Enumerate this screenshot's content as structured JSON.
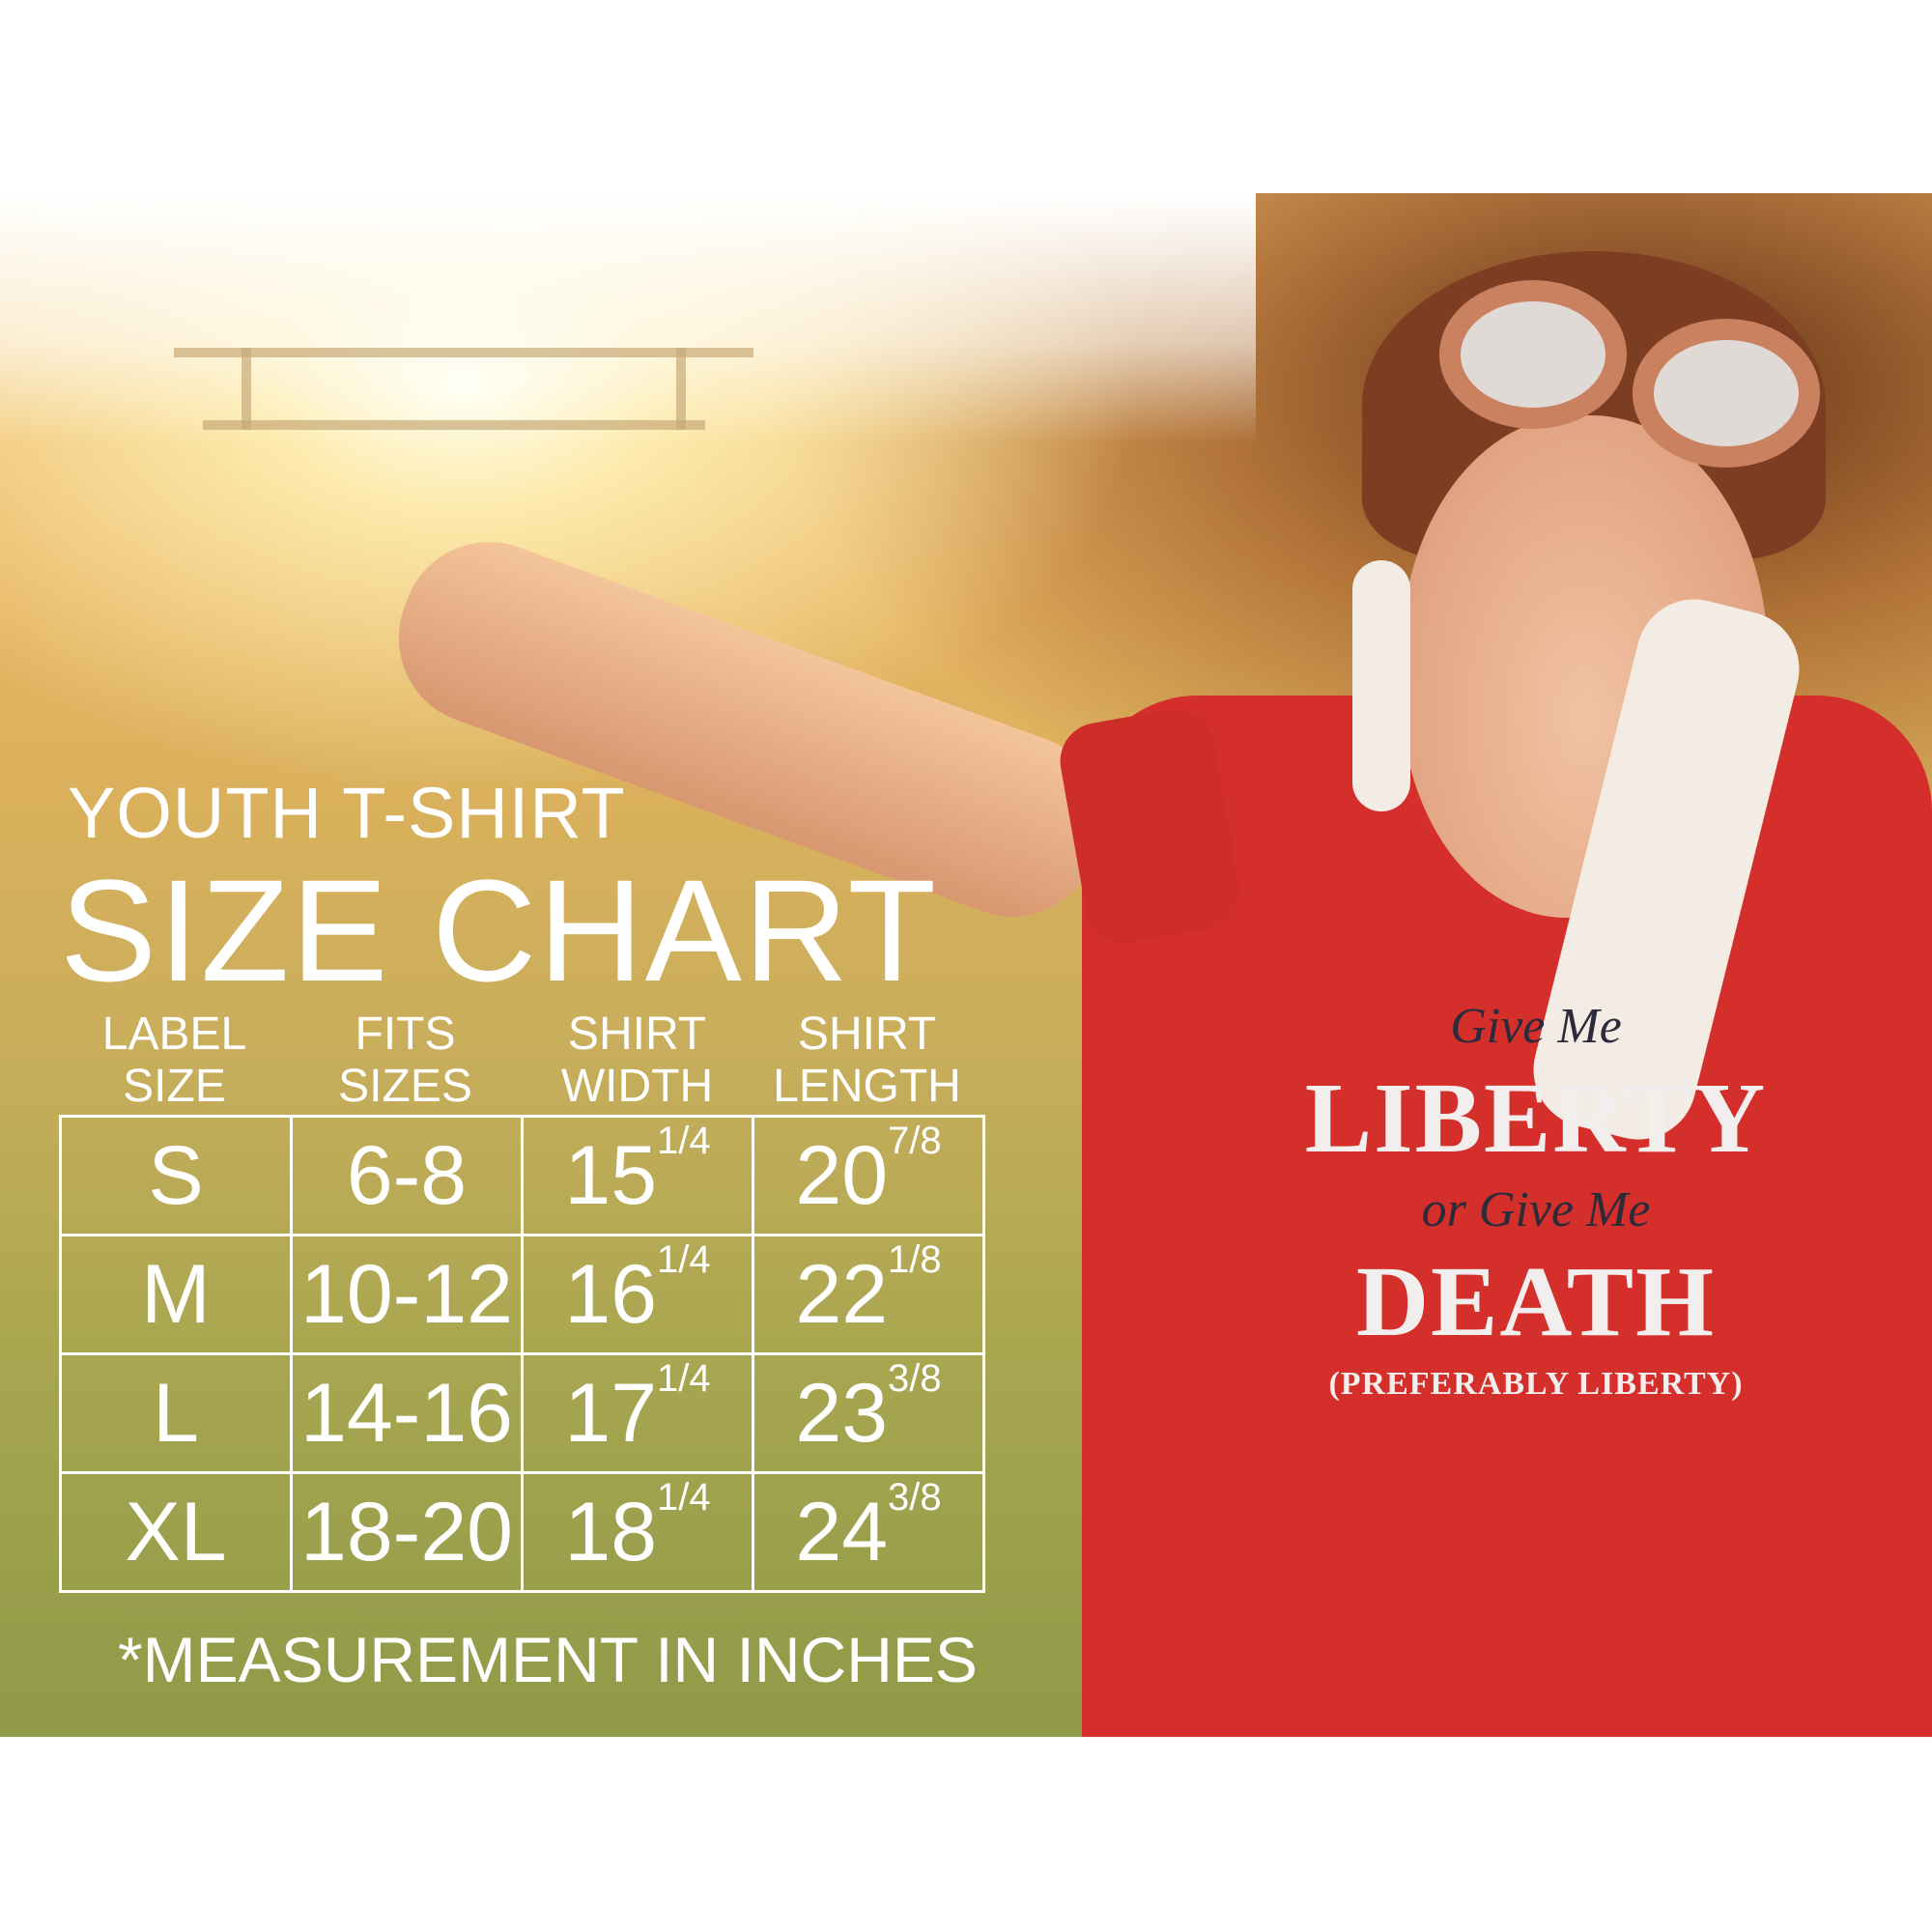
{
  "subtitle": "YOUTH T-SHIRT",
  "title": "SIZE CHART",
  "headers": [
    {
      "line1": "LABEL",
      "line2": "SIZE"
    },
    {
      "line1": "FITS",
      "line2": "SIZES"
    },
    {
      "line1": "SHIRT",
      "line2": "WIDTH"
    },
    {
      "line1": "SHIRT",
      "line2": "LENGTH"
    }
  ],
  "rows": [
    {
      "label": "S",
      "fits": "6-8",
      "width": "15",
      "width_frac": "1/4",
      "length": "20",
      "length_frac": "7/8"
    },
    {
      "label": "M",
      "fits": "10-12",
      "width": "16",
      "width_frac": "1/4",
      "length": "22",
      "length_frac": "1/8"
    },
    {
      "label": "L",
      "fits": "14-16",
      "width": "17",
      "width_frac": "1/4",
      "length": "23",
      "length_frac": "3/8"
    },
    {
      "label": "XL",
      "fits": "18-20",
      "width": "18",
      "width_frac": "1/4",
      "length": "24",
      "length_frac": "3/8"
    }
  ],
  "footnote": "*MEASUREMENT IN INCHES",
  "shirt_print": {
    "line1": "Give Me",
    "line2": "LIBERTY",
    "line3": "or Give Me",
    "line4": "DEATH",
    "line5": "(PREFERABLY LIBERTY)"
  },
  "colors": {
    "shirt": "#d42f2a",
    "text": "#ffffff"
  }
}
